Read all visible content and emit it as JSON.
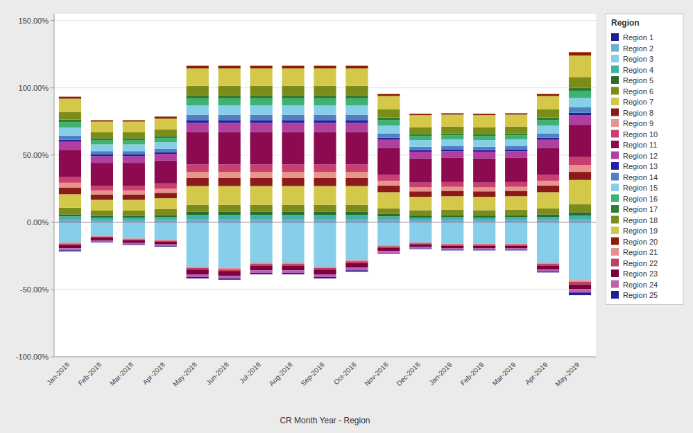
{
  "chart_data": {
    "type": "bar",
    "stacked": true,
    "grid": true,
    "legend": "right",
    "legend_title": "Region",
    "xlabel": "CR Month Year - Region",
    "categories": [
      "Jan-2018",
      "Feb-2018",
      "Mar-2018",
      "Apr-2018",
      "May-2018",
      "Jun-2018",
      "Jul-2018",
      "Aug-2018",
      "Sep-2018",
      "Oct-2018",
      "Nov-2018",
      "Dec-2018",
      "Jan-2019",
      "Feb-2019",
      "Mar-2019",
      "Apr-2019",
      "May-2019"
    ],
    "ylim": [
      -100,
      155
    ],
    "yticks": [
      {
        "value": -100,
        "label": "-100.00%"
      },
      {
        "value": -50,
        "label": "-50.00%"
      },
      {
        "value": 0,
        "label": "0.00%"
      },
      {
        "value": 50,
        "label": "50.00%"
      },
      {
        "value": 100,
        "label": "100.00%"
      },
      {
        "value": 150,
        "label": "150.00%"
      }
    ],
    "series": [
      {
        "name": "Region 1",
        "color": "#1f1f8c",
        "values": [
          0.4,
          0.3,
          0.3,
          0.4,
          0.5,
          0.5,
          0.5,
          0.5,
          0.5,
          0.5,
          0.4,
          0.3,
          0.4,
          0.3,
          0.4,
          0.4,
          0.5
        ]
      },
      {
        "name": "Region 2",
        "color": "#6baed6",
        "values": [
          1.5,
          1.2,
          1.2,
          1.5,
          2.0,
          2.0,
          2.0,
          2.0,
          2.0,
          2.0,
          1.5,
          1.2,
          1.5,
          1.2,
          1.5,
          1.5,
          2.0
        ]
      },
      {
        "name": "Region 3",
        "color": "#87ceeb",
        "values": [
          -15,
          -10,
          -12,
          -13,
          -33,
          -34,
          -30,
          -30,
          -33,
          -28,
          -17,
          -15,
          -16,
          -16,
          -16,
          -30,
          -43
        ]
      },
      {
        "name": "Region 4",
        "color": "#41b3a3",
        "values": [
          2.5,
          2.0,
          2.0,
          2.0,
          3.0,
          3.0,
          3.0,
          3.0,
          3.0,
          3.0,
          2.5,
          2.0,
          2.0,
          2.0,
          2.0,
          2.0,
          2.5
        ]
      },
      {
        "name": "Region 5",
        "color": "#2d6a2d",
        "values": [
          1.5,
          1.2,
          1.2,
          1.5,
          2.5,
          2.5,
          2.5,
          2.5,
          2.5,
          2.5,
          2.0,
          1.5,
          1.5,
          1.5,
          1.5,
          2.0,
          2.5
        ]
      },
      {
        "name": "Region 6",
        "color": "#7a8c1a",
        "values": [
          5.0,
          4.0,
          4.0,
          4.5,
          5.0,
          5.0,
          5.0,
          5.0,
          5.0,
          5.0,
          4.0,
          4.0,
          4.0,
          4.0,
          4.0,
          4.5,
          6.0
        ]
      },
      {
        "name": "Region 7",
        "color": "#d4c84a",
        "values": [
          10.0,
          8.0,
          8.0,
          8.0,
          14.0,
          14.0,
          14.0,
          14.0,
          14.0,
          14.0,
          12.0,
          10.0,
          10.0,
          10.0,
          10.0,
          12.0,
          18.0
        ]
      },
      {
        "name": "Region 8",
        "color": "#8b1a1a",
        "values": [
          5.0,
          4.0,
          4.0,
          4.0,
          6.0,
          6.0,
          6.0,
          6.0,
          6.0,
          6.0,
          5.0,
          4.0,
          4.0,
          4.0,
          4.0,
          5.0,
          6.0
        ]
      },
      {
        "name": "Region 9",
        "color": "#e8948a",
        "values": [
          3.5,
          3.0,
          3.0,
          3.0,
          4.5,
          4.5,
          4.5,
          4.5,
          4.5,
          4.5,
          3.5,
          3.0,
          3.0,
          3.0,
          3.0,
          3.5,
          5.0
        ]
      },
      {
        "name": "Region 10",
        "color": "#c94070",
        "values": [
          4.5,
          3.5,
          3.5,
          4.0,
          5.5,
          5.5,
          5.5,
          5.5,
          5.5,
          5.5,
          4.5,
          3.5,
          3.5,
          3.5,
          3.5,
          4.5,
          6.0
        ]
      },
      {
        "name": "Region 11",
        "color": "#8b0a50",
        "values": [
          20.0,
          17.0,
          17.0,
          17.0,
          24.0,
          24.0,
          24.0,
          24.0,
          24.0,
          24.0,
          20.0,
          18.0,
          18.0,
          18.0,
          18.0,
          20.0,
          24.0
        ]
      },
      {
        "name": "Region 12",
        "color": "#b040a0",
        "values": [
          6.0,
          5.0,
          5.0,
          5.0,
          7.0,
          7.0,
          7.0,
          7.0,
          7.0,
          7.0,
          6.0,
          5.0,
          5.0,
          5.0,
          5.0,
          6.0,
          7.0
        ]
      },
      {
        "name": "Region 13",
        "color": "#2020a0",
        "values": [
          1.5,
          1.2,
          1.2,
          1.2,
          2.0,
          2.0,
          2.0,
          2.0,
          2.0,
          2.0,
          1.5,
          1.2,
          1.2,
          1.2,
          1.2,
          1.5,
          2.0
        ]
      },
      {
        "name": "Region 14",
        "color": "#5080c0",
        "values": [
          3.0,
          2.5,
          2.5,
          2.5,
          4.0,
          4.0,
          4.0,
          4.0,
          4.0,
          4.0,
          3.0,
          2.5,
          2.5,
          2.5,
          2.5,
          3.0,
          4.0
        ]
      },
      {
        "name": "Region 15",
        "color": "#87ceeb",
        "values": [
          6.0,
          5.0,
          5.0,
          5.0,
          7.0,
          7.0,
          7.0,
          7.0,
          7.0,
          7.0,
          6.0,
          5.0,
          5.0,
          5.0,
          5.0,
          6.0,
          7.0
        ]
      },
      {
        "name": "Region 16",
        "color": "#3cb371",
        "values": [
          4.0,
          3.0,
          3.0,
          3.0,
          5.0,
          5.0,
          5.0,
          5.0,
          5.0,
          5.0,
          4.0,
          3.0,
          3.0,
          3.0,
          3.0,
          4.0,
          5.0
        ]
      },
      {
        "name": "Region 17",
        "color": "#2e7d32",
        "values": [
          2.0,
          1.5,
          1.5,
          1.5,
          2.5,
          2.5,
          2.5,
          2.5,
          2.5,
          2.5,
          2.0,
          1.5,
          1.5,
          1.5,
          1.5,
          2.0,
          2.5
        ]
      },
      {
        "name": "Region 18",
        "color": "#7a8c1a",
        "values": [
          5.5,
          4.5,
          4.5,
          5.0,
          7.0,
          7.0,
          7.0,
          7.0,
          7.0,
          7.0,
          6.0,
          5.0,
          5.0,
          5.0,
          5.0,
          6.0,
          8.0
        ]
      },
      {
        "name": "Region 19",
        "color": "#d4c84a",
        "values": [
          10.0,
          8.0,
          8.0,
          8.0,
          13.0,
          13.0,
          13.0,
          13.0,
          13.0,
          13.0,
          10.0,
          9.0,
          9.0,
          9.0,
          9.0,
          10.0,
          16.0
        ]
      },
      {
        "name": "Region 20",
        "color": "#8b2000",
        "values": [
          1.5,
          1.0,
          1.0,
          1.5,
          2.0,
          2.0,
          2.0,
          2.0,
          2.0,
          2.0,
          1.5,
          1.0,
          1.0,
          1.0,
          1.0,
          1.5,
          2.5
        ]
      },
      {
        "name": "Region 21",
        "color": "#e89090",
        "values": [
          -0.8,
          -0.6,
          -0.6,
          -0.6,
          -1.0,
          -1.0,
          -1.0,
          -1.0,
          -1.0,
          -1.0,
          -0.8,
          -0.6,
          -0.6,
          -0.6,
          -0.6,
          -1.0,
          -1.2
        ]
      },
      {
        "name": "Region 22",
        "color": "#c04060",
        "values": [
          -1.0,
          -0.8,
          -0.8,
          -0.8,
          -1.2,
          -1.2,
          -1.2,
          -1.2,
          -1.2,
          -1.2,
          -1.0,
          -0.8,
          -0.8,
          -0.8,
          -0.8,
          -1.5,
          -2.0
        ]
      },
      {
        "name": "Region 23",
        "color": "#7b0040",
        "values": [
          -2.5,
          -2.0,
          -2.0,
          -2.0,
          -3.5,
          -3.5,
          -3.5,
          -3.5,
          -3.5,
          -3.5,
          -2.5,
          -2.0,
          -2.0,
          -2.0,
          -2.0,
          -2.5,
          -3.5
        ]
      },
      {
        "name": "Region 24",
        "color": "#c060b0",
        "values": [
          -1.5,
          -1.0,
          -1.0,
          -1.2,
          -2.0,
          -2.0,
          -2.0,
          -2.0,
          -2.0,
          -2.0,
          -1.5,
          -1.0,
          -1.0,
          -1.0,
          -1.0,
          -1.5,
          -2.5
        ]
      },
      {
        "name": "Region 25",
        "color": "#20208c",
        "values": [
          -0.8,
          -0.5,
          -0.5,
          -0.5,
          -1.0,
          -1.0,
          -1.0,
          -1.0,
          -1.0,
          -1.0,
          -0.5,
          -0.5,
          -0.5,
          -0.5,
          -0.5,
          -0.8,
          -2.0
        ]
      }
    ]
  }
}
